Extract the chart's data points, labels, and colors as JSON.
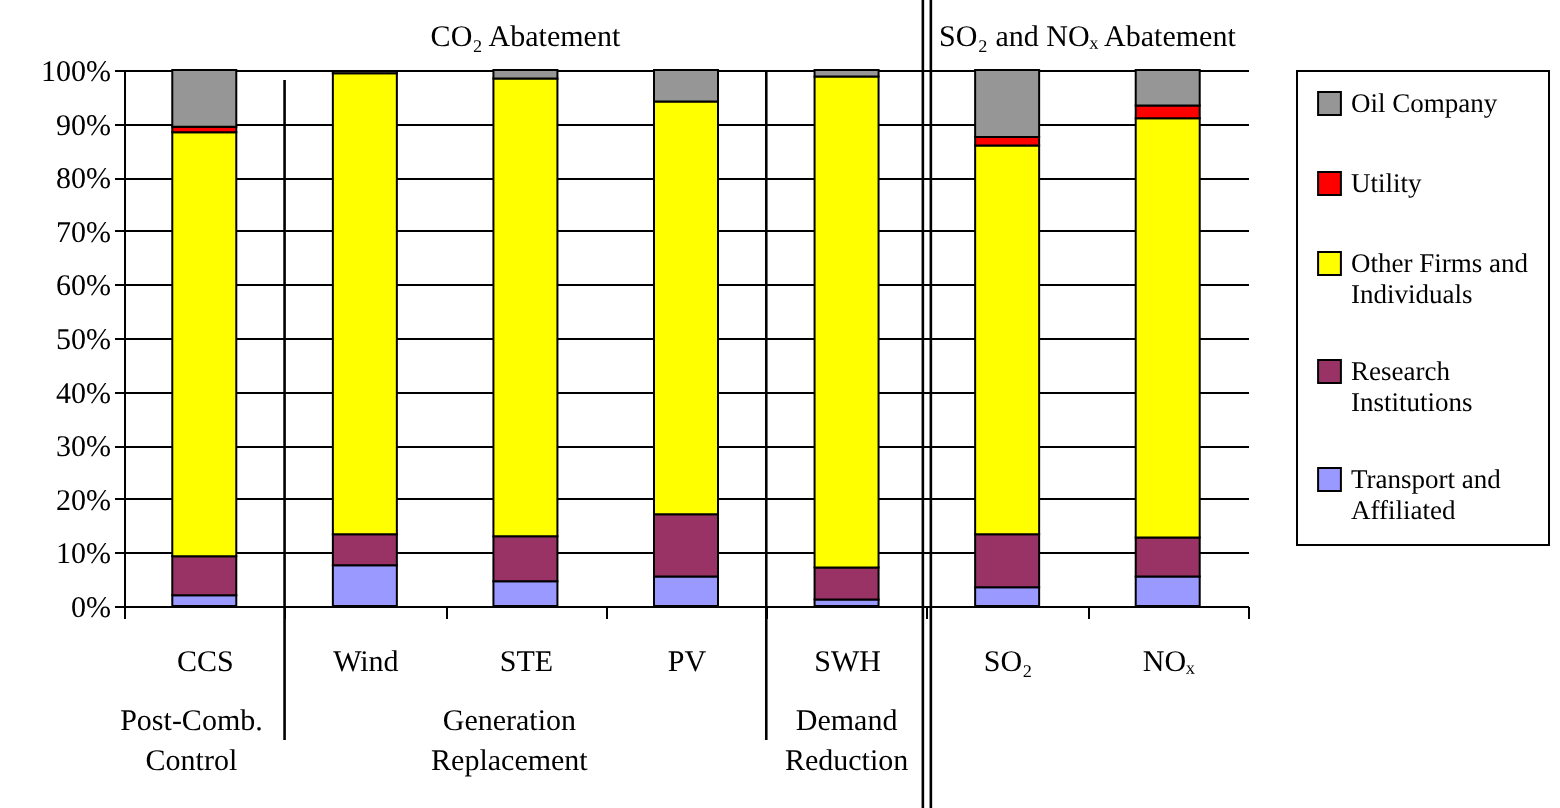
{
  "chart_data": {
    "type": "bar",
    "stacked": true,
    "categories": [
      "CCS",
      "Wind",
      "STE",
      "PV",
      "SWH",
      "SO₂",
      "NOₓ"
    ],
    "series": [
      {
        "name": "Transport and Affiliated",
        "color": "#9999ff",
        "values": [
          2.0,
          7.6,
          4.6,
          5.5,
          1.2,
          3.5,
          5.5
        ]
      },
      {
        "name": "Research Institutions",
        "color": "#993366",
        "values": [
          7.3,
          5.8,
          8.4,
          11.6,
          6.0,
          9.9,
          7.3
        ]
      },
      {
        "name": "Other Firms and Individuals",
        "color": "#ffff00",
        "values": [
          79.1,
          86.0,
          85.4,
          77.0,
          91.6,
          72.5,
          78.2
        ]
      },
      {
        "name": "Utility",
        "color": "#ff0000",
        "values": [
          1.0,
          null,
          0,
          0,
          0,
          1.6,
          2.4
        ]
      },
      {
        "name": "Oil Company",
        "color": "#969696",
        "values": [
          10.6,
          0.4,
          1.6,
          5.9,
          1.2,
          12.5,
          6.6
        ]
      }
    ],
    "ylim": [
      0,
      100
    ],
    "yticks": [
      {
        "value": 0,
        "label": "0%"
      },
      {
        "value": 10,
        "label": "10%"
      },
      {
        "value": 20,
        "label": "20%"
      },
      {
        "value": 30,
        "label": "30%"
      },
      {
        "value": 40,
        "label": "40%"
      },
      {
        "value": 50,
        "label": "50%"
      },
      {
        "value": 60,
        "label": "60%"
      },
      {
        "value": 70,
        "label": "70%"
      },
      {
        "value": 80,
        "label": "80%"
      },
      {
        "value": 90,
        "label": "90%"
      },
      {
        "value": 100,
        "label": "100%"
      }
    ],
    "grid": "y",
    "legend": "right",
    "annotations": [
      "CO₂ Abatement",
      "SO₂ and NOₓ Abatement",
      "Post-Comb. Control",
      "Generation Replacement",
      "Demand Reduction"
    ]
  }
}
